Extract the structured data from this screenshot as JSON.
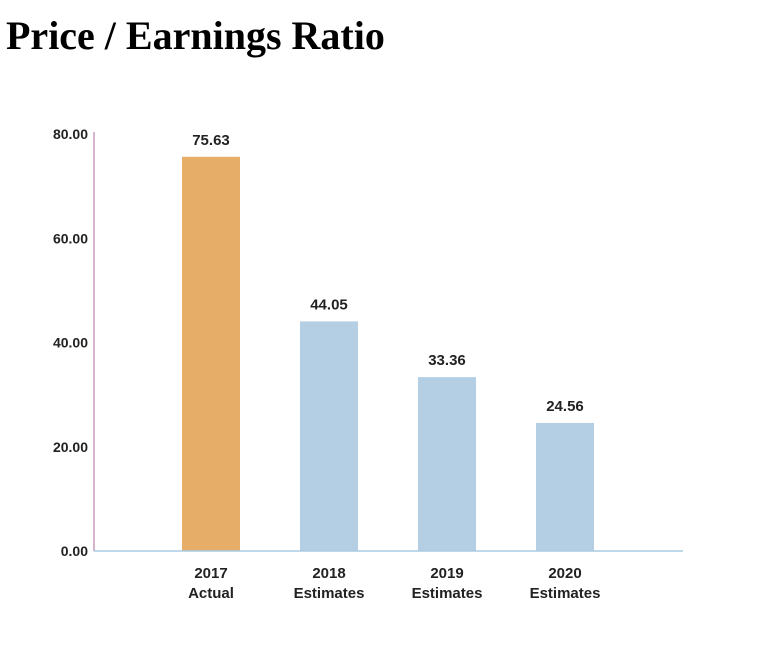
{
  "page": {
    "title": "Price / Earnings Ratio"
  },
  "chart_data": {
    "type": "bar",
    "title": "Price / Earnings Ratio",
    "xlabel": "",
    "ylabel": "",
    "ylim": [
      0,
      80
    ],
    "yticks": [
      0,
      20,
      40,
      60,
      80
    ],
    "ytick_labels": [
      "0.00",
      "20.00",
      "40.00",
      "60.00",
      "80.00"
    ],
    "grid": false,
    "legend": "none",
    "categories": [
      [
        "2017",
        "Actual"
      ],
      [
        "2018",
        "Estimates"
      ],
      [
        "2019",
        "Estimates"
      ],
      [
        "2020",
        "Estimates"
      ]
    ],
    "values": [
      75.63,
      44.05,
      33.36,
      24.56
    ],
    "value_labels": [
      "75.63",
      "44.05",
      "33.36",
      "24.56"
    ],
    "colors": {
      "actual": "#E5AD67",
      "estimate": "#B4CFE4",
      "y_axis": "#C79BC0",
      "x_axis": "#A9CBE3"
    },
    "bar_colors": [
      "#E5AD67",
      "#B4CFE4",
      "#B4CFE4",
      "#B4CFE4"
    ]
  }
}
